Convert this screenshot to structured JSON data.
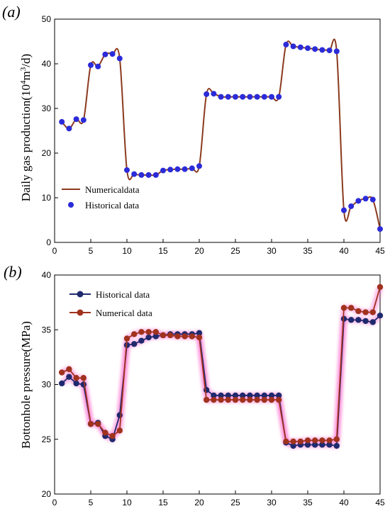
{
  "chart_data": [
    {
      "type": "line",
      "panel_label_open": "(",
      "panel_label_letter": "a",
      "panel_label_close": ")",
      "ylabel_parts": [
        "Daily gas production(10",
        "4",
        "m",
        "3",
        "/d)"
      ],
      "xlim": [
        0,
        45
      ],
      "ylim": [
        0,
        50
      ],
      "xticks": [
        0,
        5,
        10,
        15,
        20,
        25,
        30,
        35,
        40,
        45
      ],
      "yticks": [
        0,
        10,
        20,
        30,
        40,
        50
      ],
      "legend_position": "lower-left",
      "x": [
        1,
        2,
        3,
        4,
        5,
        6,
        7,
        8,
        9,
        10,
        11,
        12,
        13,
        14,
        15,
        16,
        17,
        18,
        19,
        20,
        21,
        22,
        23,
        24,
        25,
        26,
        27,
        28,
        29,
        30,
        31,
        32,
        33,
        34,
        35,
        36,
        37,
        38,
        39,
        40,
        41,
        42,
        43,
        44,
        45
      ],
      "series": [
        {
          "name": "Numericaldata",
          "style": "line",
          "color": "#8b3a1e",
          "values": [
            27,
            25.5,
            27.6,
            27.4,
            39.7,
            39.4,
            42.1,
            42.2,
            41.2,
            16.2,
            15.3,
            15.1,
            15.1,
            15.1,
            16.1,
            16.3,
            16.4,
            16.4,
            16.6,
            17.1,
            33.2,
            33.3,
            32.6,
            32.6,
            32.6,
            32.6,
            32.6,
            32.6,
            32.6,
            32.6,
            32.6,
            44.3,
            43.9,
            43.7,
            43.5,
            43.3,
            43.1,
            43.0,
            42.8,
            7.2,
            8.1,
            9.3,
            9.8,
            9.6,
            3.0
          ]
        },
        {
          "name": "Historical data",
          "style": "marker",
          "color": "#2b2bd9",
          "values": [
            27,
            25.5,
            27.6,
            27.4,
            39.7,
            39.4,
            42.1,
            42.2,
            41.2,
            16.2,
            15.3,
            15.1,
            15.1,
            15.1,
            16.1,
            16.3,
            16.4,
            16.4,
            16.6,
            17.1,
            33.2,
            33.3,
            32.6,
            32.6,
            32.6,
            32.6,
            32.6,
            32.6,
            32.6,
            32.6,
            32.6,
            44.3,
            43.9,
            43.7,
            43.5,
            43.3,
            43.1,
            43.0,
            42.8,
            7.2,
            8.1,
            9.3,
            9.8,
            9.6,
            3.0
          ]
        }
      ]
    },
    {
      "type": "line",
      "panel_label_open": "(",
      "panel_label_letter": "b",
      "panel_label_close": ")",
      "ylabel": "Bottonhole  pressure(MPa)",
      "xlim": [
        0,
        45
      ],
      "ylim": [
        20,
        40
      ],
      "xticks": [
        0,
        5,
        10,
        15,
        20,
        25,
        30,
        35,
        40,
        45
      ],
      "yticks": [
        20,
        25,
        30,
        35,
        40
      ],
      "legend_position": "upper-left",
      "x": [
        1,
        2,
        3,
        4,
        5,
        6,
        7,
        8,
        9,
        10,
        11,
        12,
        13,
        14,
        15,
        16,
        17,
        18,
        19,
        20,
        21,
        22,
        23,
        24,
        25,
        26,
        27,
        28,
        29,
        30,
        31,
        32,
        33,
        34,
        35,
        36,
        37,
        38,
        39,
        40,
        41,
        42,
        43,
        44,
        45
      ],
      "series": [
        {
          "name": "Historical data",
          "style": "line-marker",
          "color": "#1f2a6e",
          "values": [
            30.1,
            30.7,
            30.1,
            30.0,
            26.4,
            26.5,
            25.3,
            25.0,
            27.2,
            33.6,
            33.7,
            34.0,
            34.3,
            34.4,
            34.5,
            34.6,
            34.6,
            34.6,
            34.6,
            34.7,
            29.5,
            29.0,
            29.0,
            29.0,
            29.0,
            29.0,
            29.0,
            29.0,
            29.0,
            29.0,
            29.0,
            24.7,
            24.4,
            24.5,
            24.5,
            24.5,
            24.5,
            24.5,
            24.4,
            36.0,
            35.9,
            35.9,
            35.8,
            35.7,
            36.3
          ]
        },
        {
          "name": "Numerical data",
          "style": "line-marker",
          "color": "#a0321e",
          "values": [
            31.1,
            31.4,
            30.6,
            30.6,
            26.4,
            26.4,
            25.6,
            25.3,
            25.8,
            34.2,
            34.6,
            34.8,
            34.8,
            34.8,
            34.5,
            34.5,
            34.4,
            34.4,
            34.4,
            34.3,
            28.6,
            28.6,
            28.6,
            28.6,
            28.6,
            28.6,
            28.6,
            28.6,
            28.6,
            28.6,
            28.6,
            24.8,
            24.8,
            24.8,
            24.9,
            24.9,
            24.9,
            24.9,
            25.0,
            37.0,
            37.0,
            36.7,
            36.6,
            36.6,
            38.9
          ]
        }
      ]
    }
  ]
}
